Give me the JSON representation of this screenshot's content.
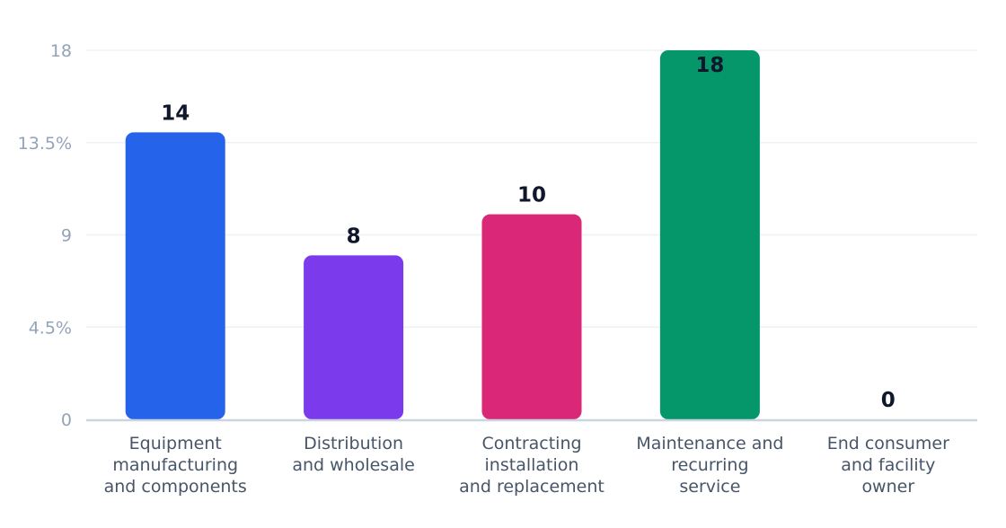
{
  "chart_data": {
    "type": "bar",
    "categories": [
      [
        "Equipment",
        "manufacturing",
        "and components"
      ],
      [
        "Distribution",
        "and wholesale"
      ],
      [
        "Contracting",
        "installation",
        "and replacement"
      ],
      [
        "Maintenance and",
        "recurring",
        "service"
      ],
      [
        "End consumer",
        "and facility",
        "owner"
      ]
    ],
    "values": [
      14,
      8,
      10,
      18,
      0
    ],
    "value_labels": [
      "14",
      "8",
      "10",
      "18",
      "0"
    ],
    "y_ticks": [
      0,
      4.5,
      9,
      13.5,
      18
    ],
    "y_tick_labels": [
      "0",
      "4.5%",
      "9",
      "13.5%",
      "18"
    ],
    "ylim": [
      0,
      18
    ],
    "colors": [
      "#2563eb",
      "#7c3aed",
      "#db2777",
      "#059669",
      "#d97706"
    ],
    "grid": true,
    "legend": "none",
    "title": "",
    "xlabel": "",
    "ylabel": ""
  }
}
